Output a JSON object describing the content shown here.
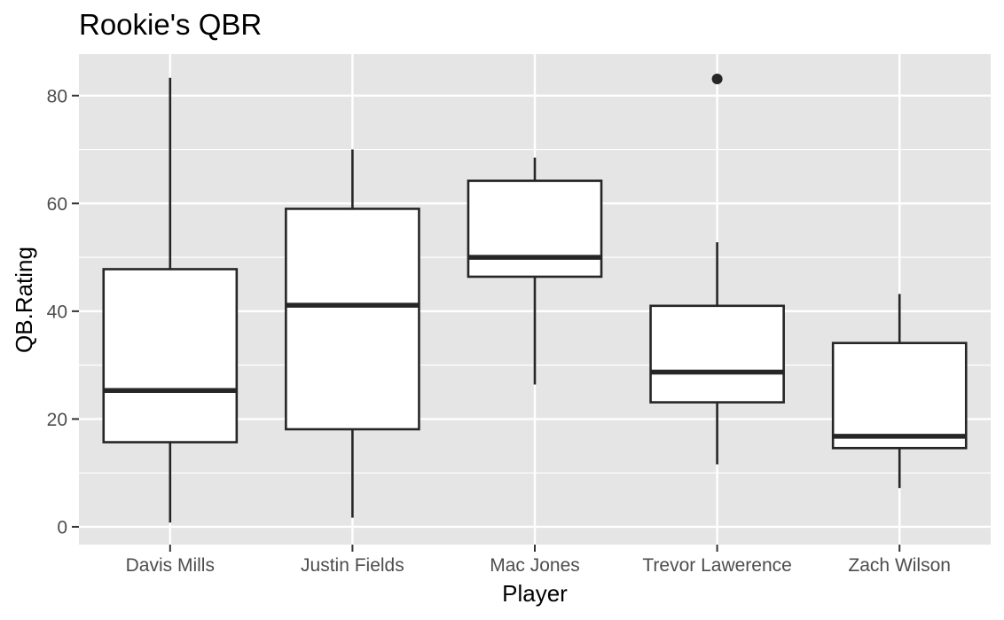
{
  "chart_data": {
    "type": "boxplot",
    "title": "Rookie's QBR",
    "xlabel": "Player",
    "ylabel": "QB.Rating",
    "ylim": [
      -3.3,
      87.7
    ],
    "yticks": [
      0,
      20,
      40,
      60,
      80
    ],
    "grid": true,
    "legend": "none",
    "colors": {
      "panel": "#e5e5e5",
      "grid": "#ffffff",
      "box_fill": "#ffffff",
      "box_stroke": "#262626",
      "tick_text": "#4d4d4d"
    },
    "categories": [
      "Davis Mills",
      "Justin Fields",
      "Mac Jones",
      "Trevor Lawerence",
      "Zach Wilson"
    ],
    "boxes": [
      {
        "name": "Davis Mills",
        "whisker_low": 0.8,
        "q1": 15.7,
        "median": 25.3,
        "q3": 47.8,
        "whisker_high": 83.3,
        "outliers": []
      },
      {
        "name": "Justin Fields",
        "whisker_low": 1.7,
        "q1": 18.1,
        "median": 41.1,
        "q3": 59.0,
        "whisker_high": 70.0,
        "outliers": []
      },
      {
        "name": "Mac Jones",
        "whisker_low": 26.4,
        "q1": 46.4,
        "median": 50.0,
        "q3": 64.2,
        "whisker_high": 68.5,
        "outliers": []
      },
      {
        "name": "Trevor Lawerence",
        "whisker_low": 11.6,
        "q1": 23.1,
        "median": 28.7,
        "q3": 41.0,
        "whisker_high": 52.8,
        "outliers": [
          83.1
        ]
      },
      {
        "name": "Zach Wilson",
        "whisker_low": 7.2,
        "q1": 14.6,
        "median": 16.8,
        "q3": 34.1,
        "whisker_high": 43.2,
        "outliers": []
      }
    ]
  }
}
